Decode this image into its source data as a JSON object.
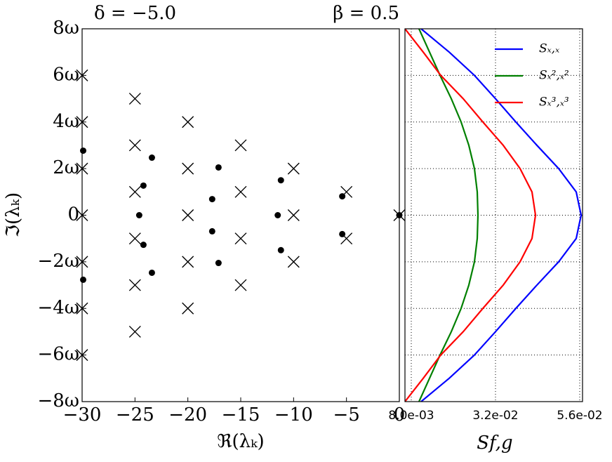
{
  "chart_data": [
    {
      "type": "scatter",
      "title": "δ = −5.0",
      "title_right": "β = 0.5",
      "x_label": "ℜ(λₖ)",
      "y_label": "ℑ(λₖ)",
      "xlim": [
        -30,
        0
      ],
      "ylim": [
        -8,
        8
      ],
      "xticks": [
        {
          "value": -30,
          "label": "−30"
        },
        {
          "value": -25,
          "label": "−25"
        },
        {
          "value": -20,
          "label": "−20"
        },
        {
          "value": -15,
          "label": "−15"
        },
        {
          "value": -10,
          "label": "−10"
        },
        {
          "value": -5,
          "label": "−5"
        },
        0
      ],
      "yticks": [
        {
          "value": -8,
          "label": "−8ω"
        },
        {
          "value": -6,
          "label": "−6ω"
        },
        {
          "value": -4,
          "label": "−4ω"
        },
        {
          "value": -2,
          "label": "−2ω"
        },
        0,
        {
          "value": 2,
          "label": "2ω"
        },
        {
          "value": 4,
          "label": "4ω"
        },
        {
          "value": 6,
          "label": "6ω"
        },
        {
          "value": 8,
          "label": "8ω"
        }
      ],
      "series": [
        {
          "marker": "x",
          "color": "#000000",
          "x": [
            -30,
            -30,
            -30,
            -30,
            -30,
            -30,
            -30,
            -25,
            -25,
            -25,
            -25,
            -25,
            -25,
            -20,
            -20,
            -20,
            -20,
            -20,
            -15,
            -15,
            -15,
            -15,
            -10,
            -10,
            -10,
            -5,
            -5,
            0
          ],
          "values": [
            6,
            4,
            2,
            0,
            -2,
            -4,
            -6,
            5,
            3,
            1,
            -1,
            -3,
            -5,
            4,
            2,
            0,
            -2,
            -4,
            3,
            1,
            -1,
            -3,
            2,
            0,
            -2,
            1,
            -1,
            0
          ]
        },
        {
          "marker": "o",
          "color": "#000000",
          "x": [
            -29.9,
            -29.9,
            -23.4,
            -23.4,
            -24.2,
            -24.2,
            -24.6,
            -17.1,
            -17.1,
            -17.7,
            -17.7,
            -11.2,
            -11.2,
            -11.5,
            -5.4,
            -5.4,
            0
          ],
          "values": [
            2.77,
            -2.77,
            2.47,
            -2.47,
            1.27,
            -1.27,
            0,
            2.05,
            -2.05,
            0.69,
            -0.69,
            1.5,
            -1.5,
            0,
            0.81,
            -0.81,
            0
          ]
        }
      ]
    },
    {
      "type": "line",
      "x_label": "Sf,g",
      "grid": true,
      "legend": "upper right",
      "xlim": [
        0.0062,
        0.0568
      ],
      "ylim": [
        -8,
        8
      ],
      "xticks": [
        {
          "value": 0.008,
          "label": "8.0e-03"
        },
        {
          "value": 0.032,
          "label": "3.2e-02"
        },
        {
          "value": 0.056,
          "label": "5.6e-02"
        }
      ],
      "yticks": [
        -8,
        -6,
        -4,
        -2,
        0,
        2,
        4,
        6,
        8
      ],
      "y": [
        -8,
        -7,
        -6,
        -5,
        -4,
        -3,
        -2,
        -1,
        0,
        1,
        2,
        3,
        4,
        5,
        6,
        7,
        8
      ],
      "series": [
        {
          "name": "Sₓ,ₓ",
          "color": "#0000ff",
          "values": [
            0.0108,
            0.0188,
            0.026,
            0.032,
            0.0378,
            0.0438,
            0.05,
            0.055,
            0.0564,
            0.055,
            0.05,
            0.0438,
            0.0378,
            0.032,
            0.026,
            0.0188,
            0.0108
          ]
        },
        {
          "name": "Sₓ²,ₓ²",
          "color": "#008000",
          "values": [
            0.0102,
            0.0132,
            0.0162,
            0.0194,
            0.0222,
            0.0244,
            0.026,
            0.0268,
            0.027,
            0.0268,
            0.026,
            0.0244,
            0.0222,
            0.0194,
            0.0162,
            0.0132,
            0.0102
          ]
        },
        {
          "name": "Sₓ³,ₓ³",
          "color": "#ff0000",
          "values": [
            0.0062,
            0.0114,
            0.0164,
            0.0228,
            0.0284,
            0.0342,
            0.039,
            0.0424,
            0.0434,
            0.0424,
            0.039,
            0.0342,
            0.0284,
            0.0228,
            0.0164,
            0.0114,
            0.0062
          ]
        }
      ]
    }
  ]
}
